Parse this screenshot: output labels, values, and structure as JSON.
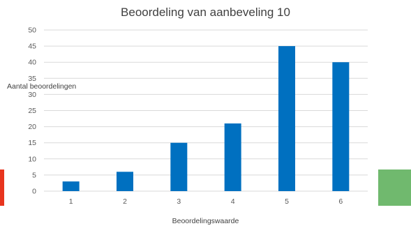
{
  "colors": {
    "bar": "#0070c0",
    "grid": "#d9d9d9",
    "accent_left": "#e8351e",
    "accent_right": "#70b96e"
  },
  "chart_data": {
    "type": "bar",
    "title": "Beoordeling van aanbeveling 10",
    "xlabel": "Beoordelingswaarde",
    "ylabel": "Aantal beoordelingen",
    "categories": [
      "1",
      "2",
      "3",
      "4",
      "5",
      "6"
    ],
    "values": [
      3,
      6,
      15,
      21,
      45,
      40
    ],
    "ylim": [
      0,
      50
    ],
    "yticks": [
      "0",
      "5",
      "10",
      "15",
      "20",
      "25",
      "30",
      "35",
      "40",
      "45",
      "50"
    ],
    "grid": true,
    "legend": "none"
  }
}
